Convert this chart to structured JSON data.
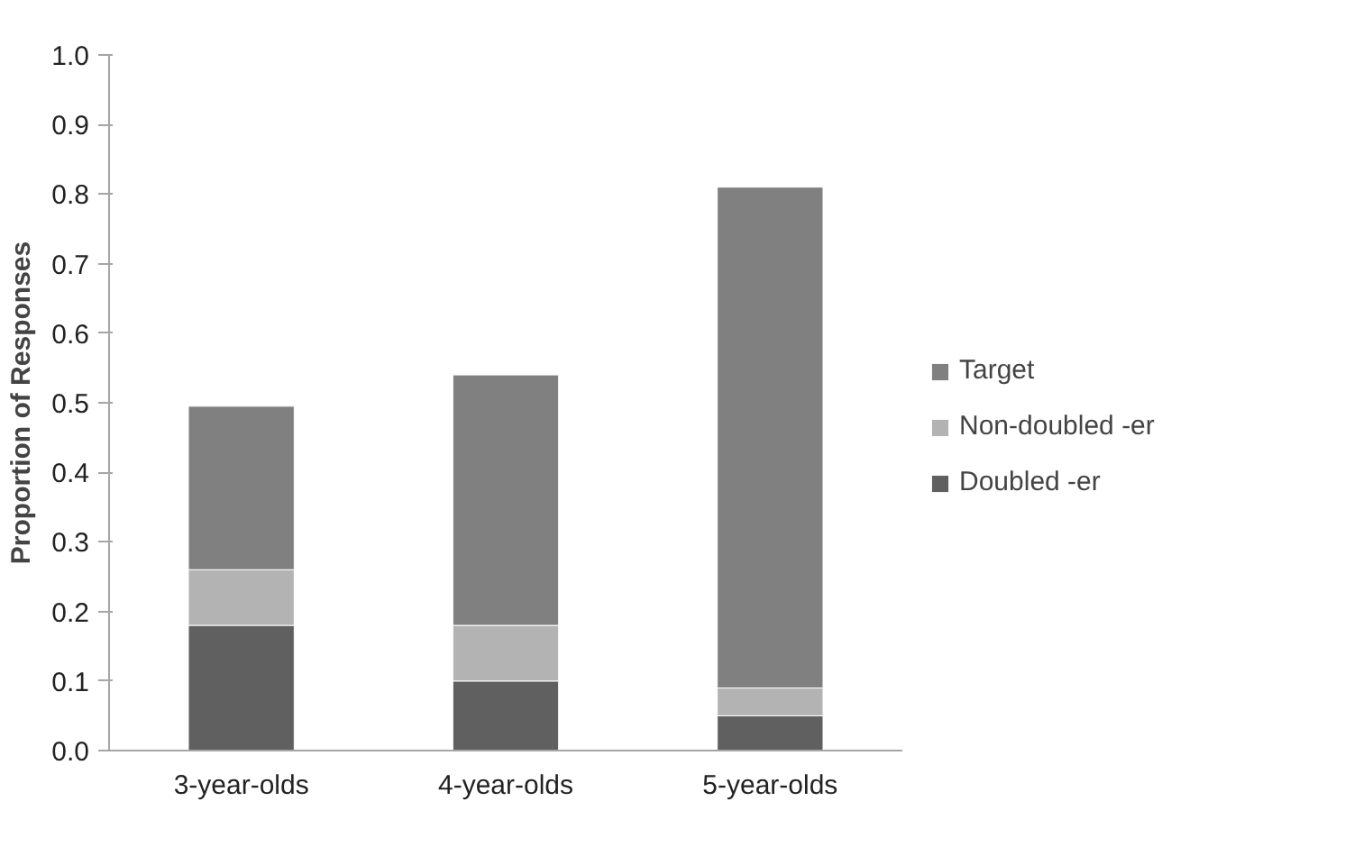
{
  "chart_data": {
    "type": "bar",
    "stacked": true,
    "ylabel": "Proportion of Responses",
    "categories": [
      "3-year-olds",
      "4-year-olds",
      "5-year-olds"
    ],
    "series": [
      {
        "name": "Doubled -er",
        "color": "#606060",
        "values": [
          0.18,
          0.1,
          0.05
        ]
      },
      {
        "name": "Non-doubled -er",
        "color": "#b3b3b3",
        "values": [
          0.08,
          0.08,
          0.04
        ]
      },
      {
        "name": "Target",
        "color": "#808080",
        "values": [
          0.235,
          0.36,
          0.72
        ]
      }
    ],
    "ylim": [
      0,
      1.0
    ],
    "yticks": [
      {
        "value": 0,
        "label": "0.0"
      },
      {
        "value": 0.1,
        "label": "0.1"
      },
      {
        "value": 0.2,
        "label": "0.2"
      },
      {
        "value": 0.3,
        "label": "0.3"
      },
      {
        "value": 0.4,
        "label": "0.4"
      },
      {
        "value": 0.5,
        "label": "0.5"
      },
      {
        "value": 0.6,
        "label": "0.6"
      },
      {
        "value": 0.7,
        "label": "0.7"
      },
      {
        "value": 0.8,
        "label": "0.8"
      },
      {
        "value": 0.9,
        "label": "0.9"
      },
      {
        "value": 1.0,
        "label": "1.0"
      }
    ],
    "grid": false,
    "legend": "right"
  }
}
